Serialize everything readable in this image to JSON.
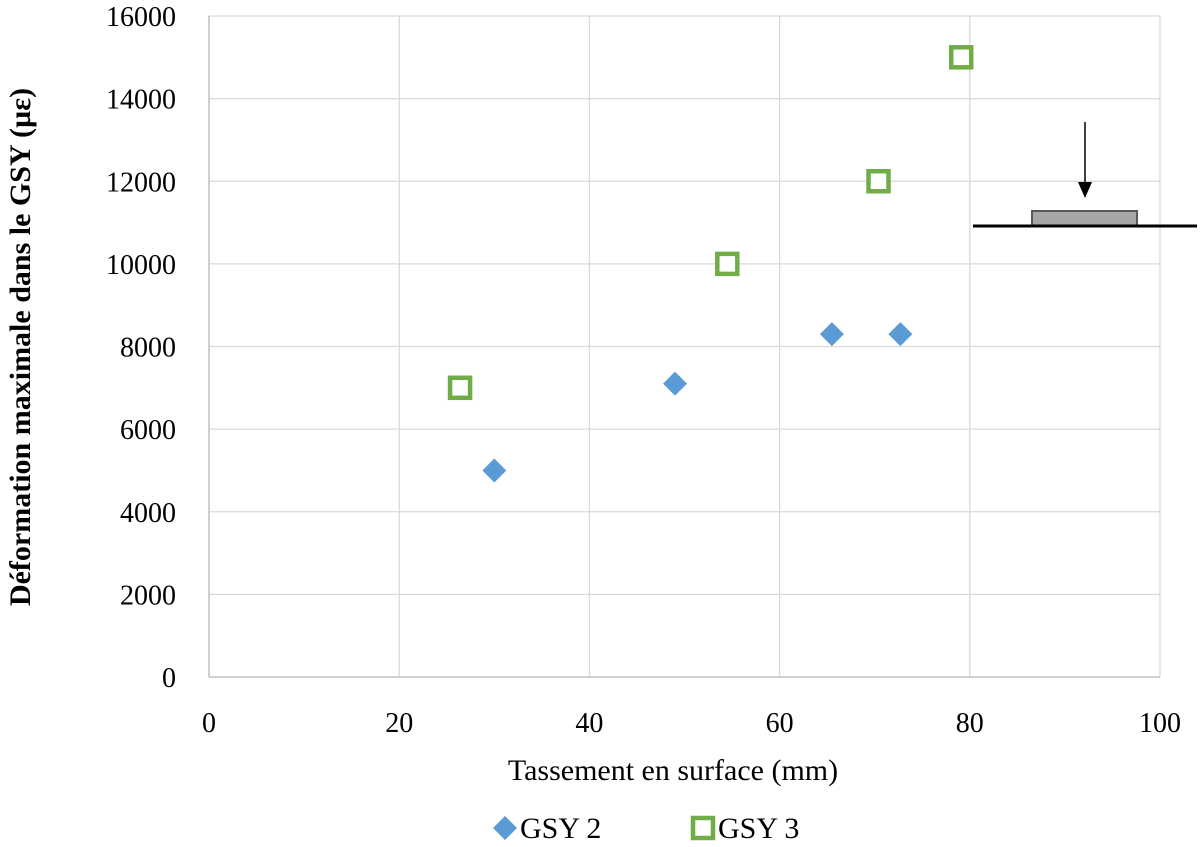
{
  "chart_data": {
    "type": "scatter",
    "title": "",
    "xlabel": "Tassement en surface (mm)",
    "ylabel": "Déformation maximale dans le GSY (µε)",
    "xlim": [
      0,
      100
    ],
    "ylim": [
      0,
      16000
    ],
    "x_ticks": [
      0,
      20,
      40,
      60,
      80,
      100
    ],
    "y_ticks": [
      0,
      2000,
      4000,
      6000,
      8000,
      10000,
      12000,
      14000,
      16000
    ],
    "grid": true,
    "legend_position": "bottom",
    "series": [
      {
        "name": "GSY 2",
        "marker": "diamond",
        "color": "#5b9bd5",
        "points": [
          {
            "x": 30,
            "y": 5000
          },
          {
            "x": 49,
            "y": 7100
          },
          {
            "x": 65.5,
            "y": 8300
          },
          {
            "x": 72.7,
            "y": 8300
          }
        ]
      },
      {
        "name": "GSY 3",
        "marker": "square-open",
        "color": "#70ad47",
        "points": [
          {
            "x": 26.4,
            "y": 7000
          },
          {
            "x": 54.5,
            "y": 10000
          },
          {
            "x": 70.4,
            "y": 12000
          },
          {
            "x": 79.1,
            "y": 15000
          }
        ]
      }
    ]
  }
}
